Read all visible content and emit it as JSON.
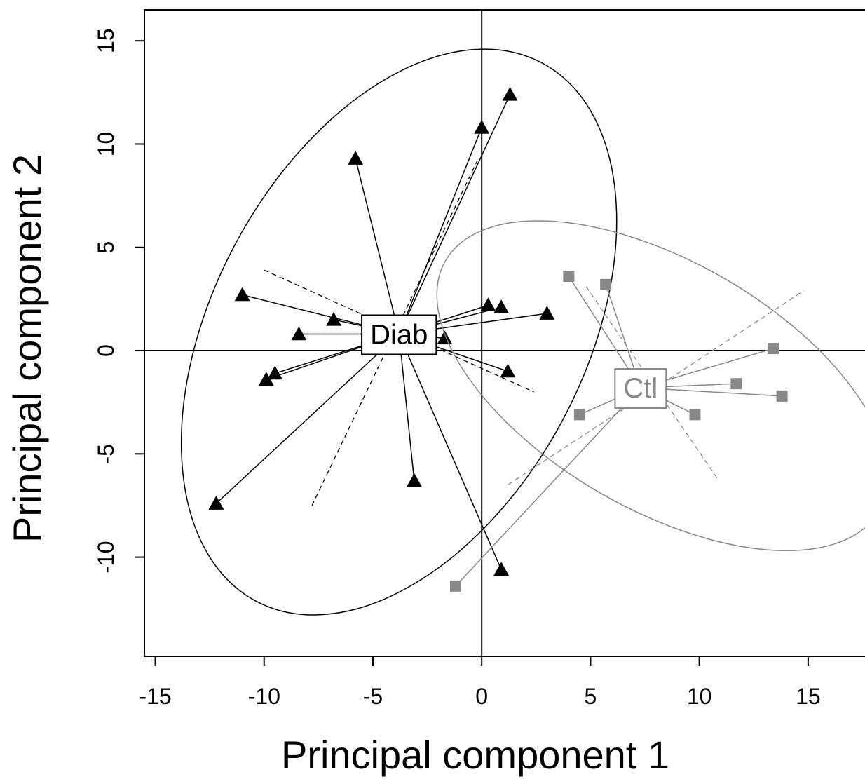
{
  "chart_data": {
    "type": "scatter",
    "title": "",
    "xlabel": "Principal component 1",
    "ylabel": "Principal component 2",
    "xlim": [
      -15.5,
      18
    ],
    "ylim": [
      -14.8,
      16.5
    ],
    "xticks": [
      "-15",
      "-10",
      "-5",
      "0",
      "5",
      "10",
      "15"
    ],
    "yticks": [
      "-10",
      "-5",
      "0",
      "5",
      "10",
      "15"
    ],
    "xtick_values": [
      -15,
      -10,
      -5,
      0,
      5,
      10,
      15
    ],
    "ytick_values": [
      -10,
      -5,
      0,
      5,
      10,
      15
    ],
    "reference_lines": {
      "x": 0,
      "y": 0
    },
    "grid": false,
    "legend": "none",
    "groups": [
      {
        "label": "Diab",
        "marker": "triangle",
        "color": "#000000",
        "centroid": [
          -3.8,
          0.8
        ],
        "points": [
          [
            -12.2,
            -7.4
          ],
          [
            -11.0,
            2.7
          ],
          [
            -9.9,
            -1.4
          ],
          [
            -9.5,
            -1.1
          ],
          [
            -8.4,
            0.8
          ],
          [
            -6.8,
            1.5
          ],
          [
            -5.8,
            9.3
          ],
          [
            -3.1,
            -6.3
          ],
          [
            -1.7,
            0.6
          ],
          [
            0.0,
            10.8
          ],
          [
            0.3,
            2.2
          ],
          [
            0.9,
            2.1
          ],
          [
            0.9,
            -10.6
          ],
          [
            1.3,
            12.4
          ],
          [
            1.2,
            -1.0
          ],
          [
            3.0,
            1.8
          ]
        ],
        "ellipse": {
          "center": [
            -3.8,
            0.9
          ],
          "rx": 14.0,
          "ry": 9.0,
          "angle_deg": 62
        },
        "dashed_axes": [
          [
            [
              -10.0,
              3.9
            ],
            [
              2.4,
              -2.0
            ]
          ],
          [
            [
              -7.8,
              -7.5
            ],
            [
              -0.2,
              9.2
            ]
          ]
        ]
      },
      {
        "label": "Ctl",
        "marker": "square",
        "color": "#888888",
        "centroid": [
          7.3,
          -1.8
        ],
        "points": [
          [
            -1.2,
            -11.4
          ],
          [
            4.0,
            3.6
          ],
          [
            4.5,
            -3.1
          ],
          [
            5.7,
            3.2
          ],
          [
            9.8,
            -3.1
          ],
          [
            11.7,
            -1.6
          ],
          [
            13.4,
            0.1
          ],
          [
            13.8,
            -2.2
          ]
        ],
        "ellipse": {
          "center": [
            8.3,
            -1.7
          ],
          "rx": 11.5,
          "ry": 6.0,
          "angle_deg": -30
        },
        "dashed_axes": [
          [
            [
              1.2,
              -6.5
            ],
            [
              14.8,
              2.9
            ]
          ],
          [
            [
              4.8,
              3.1
            ],
            [
              10.9,
              -6.3
            ]
          ]
        ]
      }
    ]
  }
}
